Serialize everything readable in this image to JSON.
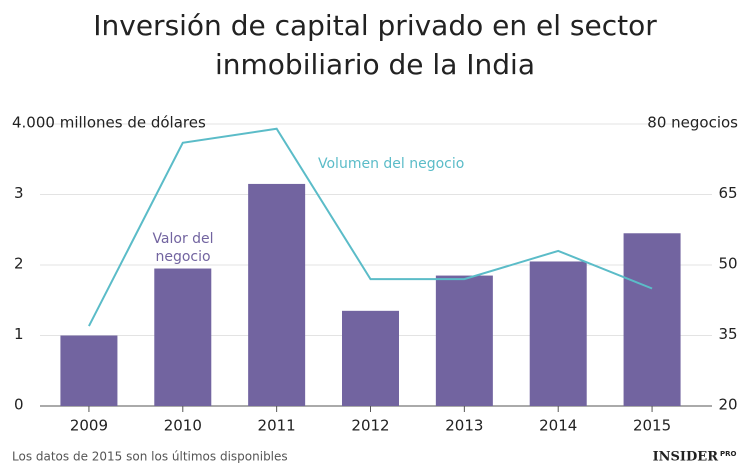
{
  "chart_data": {
    "type": "bar-line",
    "title": [
      "Inversión de capital privado en el sector",
      "inmobiliario de la India"
    ],
    "categories": [
      "2009",
      "2010",
      "2011",
      "2012",
      "2013",
      "2014",
      "2015"
    ],
    "series": [
      {
        "name": [
          "Valor del",
          "negocio"
        ],
        "type": "bar",
        "color": "#7264a0",
        "values": [
          1.0,
          1.95,
          3.15,
          1.35,
          1.85,
          2.05,
          2.45
        ]
      },
      {
        "name": "Volumen del negocio",
        "type": "line",
        "axis": "y2",
        "color": "#5bbcc8",
        "values": [
          37,
          76,
          79,
          47,
          47,
          53,
          45
        ]
      }
    ],
    "ylim": [
      0,
      4
    ],
    "yticks": [
      0,
      1,
      2,
      3,
      {
        "value": 4,
        "label": "4.000 millones de dólares"
      }
    ],
    "y2lim": [
      20,
      80
    ],
    "y2ticks": [
      20,
      35,
      50,
      65,
      {
        "value": 80,
        "label": "80 negocios"
      }
    ],
    "grid": true,
    "footnote": "Los datos de 2015 son los últimos disponibles",
    "brand": "INSIDER",
    "brand_sub": "PRO"
  }
}
